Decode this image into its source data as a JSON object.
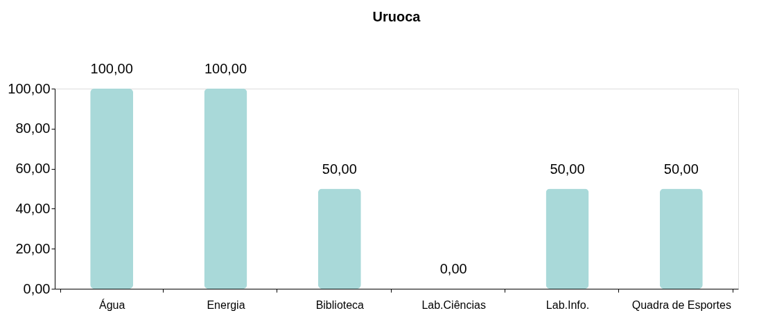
{
  "chart_data": {
    "type": "bar",
    "title": "Uruoca",
    "categories": [
      "Água",
      "Energia",
      "Biblioteca",
      "Lab.Ciências",
      "Lab.Info.",
      "Quadra de Esportes"
    ],
    "values": [
      100,
      100,
      50,
      0,
      50,
      50
    ],
    "value_labels": [
      "100,00",
      "100,00",
      "50,00",
      "0,00",
      "50,00",
      "50,00"
    ],
    "color": "#a9d9d9",
    "ylim": [
      0,
      100
    ],
    "yticks": [
      {
        "value": 0,
        "label": "0,00"
      },
      {
        "value": 20,
        "label": "20,00"
      },
      {
        "value": 40,
        "label": "40,00"
      },
      {
        "value": 60,
        "label": "60,00"
      },
      {
        "value": 80,
        "label": "80,00"
      },
      {
        "value": 100,
        "label": "100,00"
      }
    ],
    "grid": false
  }
}
